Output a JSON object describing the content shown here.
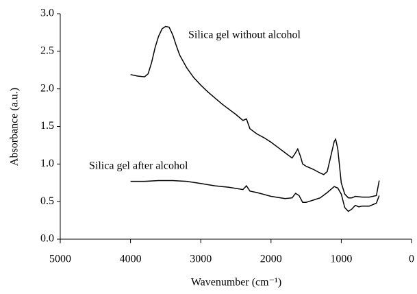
{
  "chart_data": {
    "type": "line",
    "xlabel": "Wavenumber (cm⁻¹)",
    "ylabel": "Absorbance (a.u.)",
    "xlim": [
      5000,
      0
    ],
    "xticks": [
      5000,
      4000,
      3000,
      2000,
      1000,
      0
    ],
    "ylim": [
      0,
      3
    ],
    "yticks": [
      {
        "value": 0,
        "label": "0.0"
      },
      0.5,
      {
        "value": 1,
        "label": "1.0"
      },
      1.5,
      {
        "value": 2,
        "label": "2.0"
      },
      2.5,
      {
        "value": 3,
        "label": "3.0"
      }
    ],
    "annotations": [
      "Silica gel without alcohol",
      "Silica gel after alcohol"
    ],
    "series": [
      {
        "name": "Silica gel without alcohol",
        "color": "#000000",
        "x": [
          4000,
          3900,
          3800,
          3750,
          3700,
          3650,
          3600,
          3550,
          3500,
          3450,
          3400,
          3350,
          3300,
          3200,
          3100,
          3000,
          2900,
          2800,
          2700,
          2600,
          2500,
          2400,
          2350,
          2300,
          2200,
          2100,
          2000,
          1900,
          1800,
          1700,
          1650,
          1620,
          1580,
          1550,
          1500,
          1400,
          1300,
          1250,
          1200,
          1150,
          1100,
          1080,
          1050,
          1000,
          950,
          900,
          850,
          800,
          700,
          600,
          500,
          460
        ],
        "values": [
          2.19,
          2.17,
          2.16,
          2.2,
          2.35,
          2.55,
          2.7,
          2.8,
          2.83,
          2.82,
          2.72,
          2.58,
          2.45,
          2.28,
          2.15,
          2.05,
          1.96,
          1.88,
          1.8,
          1.73,
          1.66,
          1.58,
          1.6,
          1.47,
          1.4,
          1.35,
          1.29,
          1.22,
          1.15,
          1.08,
          1.15,
          1.2,
          1.1,
          1.0,
          0.97,
          0.93,
          0.88,
          0.86,
          0.9,
          1.1,
          1.3,
          1.33,
          1.2,
          0.75,
          0.6,
          0.55,
          0.55,
          0.57,
          0.56,
          0.56,
          0.58,
          0.78
        ]
      },
      {
        "name": "Silica gel after alcohol",
        "color": "#000000",
        "x": [
          4000,
          3800,
          3600,
          3400,
          3200,
          3000,
          2800,
          2600,
          2400,
          2350,
          2300,
          2200,
          2000,
          1800,
          1700,
          1650,
          1600,
          1550,
          1500,
          1400,
          1300,
          1200,
          1100,
          1050,
          1000,
          950,
          900,
          850,
          800,
          750,
          700,
          600,
          500,
          460
        ],
        "values": [
          0.77,
          0.77,
          0.78,
          0.78,
          0.77,
          0.74,
          0.71,
          0.69,
          0.66,
          0.71,
          0.64,
          0.62,
          0.57,
          0.54,
          0.55,
          0.61,
          0.58,
          0.49,
          0.49,
          0.52,
          0.55,
          0.62,
          0.7,
          0.68,
          0.6,
          0.42,
          0.37,
          0.4,
          0.45,
          0.43,
          0.44,
          0.44,
          0.48,
          0.58
        ]
      }
    ]
  }
}
